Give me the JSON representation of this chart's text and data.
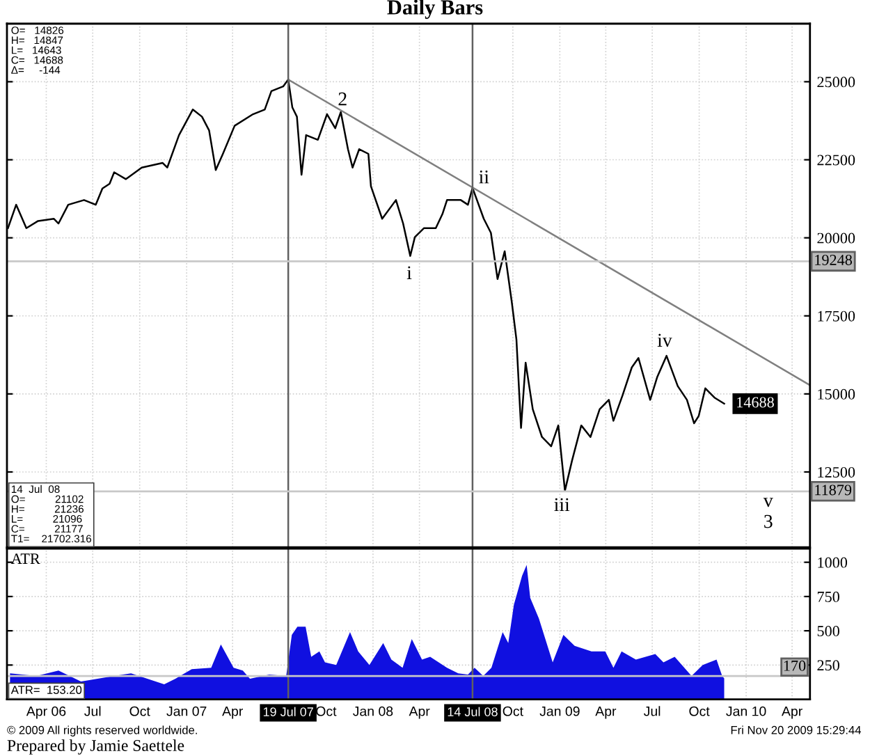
{
  "chart_data": [
    {
      "type": "line",
      "title": "Daily Bars",
      "x": [
        "2006-01-16",
        "2006-02-01",
        "2006-02-21",
        "2006-03-16",
        "2006-04-16",
        "2006-04-25",
        "2006-05-14",
        "2006-06-14",
        "2006-07-07",
        "2006-07-20",
        "2006-08-03",
        "2006-08-12",
        "2006-09-04",
        "2006-10-05",
        "2006-11-15",
        "2006-11-24",
        "2006-12-17",
        "2007-01-13",
        "2007-01-31",
        "2007-02-14",
        "2007-02-27",
        "2007-03-13",
        "2007-04-05",
        "2007-05-11",
        "2007-06-03",
        "2007-06-16",
        "2007-07-09",
        "2007-07-19",
        "2007-07-27",
        "2007-08-05",
        "2007-08-14",
        "2007-08-23",
        "2007-09-15",
        "2007-10-03",
        "2007-10-19",
        "2007-10-30",
        "2007-11-13",
        "2007-11-22",
        "2007-12-05",
        "2007-12-23",
        "2007-12-28",
        "2008-01-19",
        "2008-02-15",
        "2008-02-29",
        "2008-03-14",
        "2008-03-23",
        "2008-04-10",
        "2008-05-03",
        "2008-05-16",
        "2008-05-25",
        "2008-06-21",
        "2008-07-05",
        "2008-07-14",
        "2008-08-05",
        "2008-08-19",
        "2008-09-01",
        "2008-09-15",
        "2008-09-29",
        "2008-10-08",
        "2008-10-17",
        "2008-10-26",
        "2008-11-09",
        "2008-11-27",
        "2008-12-15",
        "2008-12-29",
        "2009-01-11",
        "2009-01-25",
        "2009-02-12",
        "2009-03-02",
        "2009-03-20",
        "2009-04-07",
        "2009-04-16",
        "2009-05-04",
        "2009-05-22",
        "2009-06-04",
        "2009-06-27",
        "2009-07-11",
        "2009-07-29",
        "2009-08-20",
        "2009-09-07",
        "2009-09-21",
        "2009-09-30",
        "2009-10-13",
        "2009-10-31",
        "2009-11-19"
      ],
      "series": [
        {
          "color": "#000000",
          "values": [
            20310,
            21060,
            20310,
            20540,
            20610,
            20460,
            21060,
            21210,
            21060,
            21580,
            21730,
            22100,
            21880,
            22250,
            22400,
            22250,
            23290,
            24110,
            23880,
            23440,
            22170,
            22690,
            23590,
            23960,
            24110,
            24700,
            24850,
            25070,
            24180,
            23880,
            22020,
            23290,
            23140,
            23960,
            23510,
            24030,
            22840,
            22250,
            22840,
            22690,
            21650,
            20610,
            21210,
            20460,
            19420,
            20020,
            20310,
            20310,
            20760,
            21210,
            21210,
            21060,
            21600,
            20610,
            20160,
            18680,
            19570,
            17930,
            16740,
            13910,
            16000,
            14510,
            13620,
            13320,
            13990,
            11900,
            12870,
            13990,
            13620,
            14510,
            14810,
            14140,
            14960,
            15850,
            16150,
            14810,
            15550,
            16220,
            15250,
            14810,
            14060,
            14290,
            15180,
            14880,
            14688
          ],
          "value_labels": [
            null,
            null,
            null,
            null,
            null,
            null,
            null,
            null,
            null,
            null,
            null,
            null,
            null,
            null,
            null,
            null,
            null,
            null,
            null,
            null,
            null,
            null,
            null,
            null,
            null,
            null,
            null,
            null,
            null,
            null,
            null,
            null,
            null,
            null,
            null,
            null,
            null,
            null,
            null,
            null,
            null,
            null,
            null,
            null,
            null,
            null,
            null,
            null,
            null,
            null,
            null,
            null,
            null,
            null,
            null,
            null,
            null,
            null,
            null,
            null,
            null,
            null,
            null,
            null,
            null,
            null,
            null,
            null,
            null,
            null,
            null,
            null,
            null,
            null,
            null,
            null,
            null,
            null,
            null,
            null,
            null,
            null,
            null,
            null,
            "14688"
          ]
        },
        {
          "type": "line",
          "color": "#808080",
          "x": [
            "2007-07-19",
            "2010-05-06"
          ],
          "values": [
            25070,
            15280
          ]
        }
      ],
      "xlim": [
        "2006-01-14",
        "2010-05-06"
      ],
      "ylim": [
        10090,
        26860
      ],
      "yticks": [
        12500,
        15000,
        17500,
        20000,
        22500,
        25000
      ],
      "tick_labels": "y",
      "grid": true,
      "ref_lines": [
        {
          "axis": "x",
          "value": "2007-07-19",
          "color": "#606060"
        },
        {
          "axis": "x",
          "value": "2008-07-14",
          "color": "#606060"
        },
        {
          "axis": "y",
          "value": 19248,
          "label": "19248",
          "color": "#c8c8c8"
        },
        {
          "axis": "y",
          "value": 11879,
          "label": "11879",
          "color": "#c8c8c8"
        }
      ],
      "annotations": [
        "O=   14826\nH=   14847\nL=   14643\nC=   14688\nΔ=     -144",
        "14  Jul  08\nO=          21102\nH=          21236\nL=          21096\nC=          21177\nT1=    21702.316",
        "2",
        "i",
        "ii",
        "iii",
        "iv",
        "v",
        "3"
      ]
    },
    {
      "type": "area",
      "title": "ATR",
      "x": [
        "2006-01-20",
        "2006-03-13",
        "2006-04-25",
        "2006-06-08",
        "2006-08-12",
        "2006-09-14",
        "2006-11-18",
        "2006-12-10",
        "2007-01-11",
        "2007-02-18",
        "2007-03-09",
        "2007-04-03",
        "2007-04-21",
        "2007-05-05",
        "2007-06-12",
        "2007-07-15",
        "2007-07-26",
        "2007-08-06",
        "2007-08-22",
        "2007-09-02",
        "2007-09-18",
        "2007-09-29",
        "2007-10-21",
        "2007-11-17",
        "2007-12-03",
        "2007-12-25",
        "2008-01-21",
        "2008-02-06",
        "2008-02-28",
        "2008-03-17",
        "2008-04-06",
        "2008-04-22",
        "2008-05-25",
        "2008-06-16",
        "2008-07-05",
        "2008-07-18",
        "2008-08-04",
        "2008-08-20",
        "2008-09-11",
        "2008-09-22",
        "2008-10-03",
        "2008-10-19",
        "2008-10-28",
        "2008-11-04",
        "2008-11-21",
        "2008-12-18",
        "2009-01-08",
        "2009-01-30",
        "2009-03-04",
        "2009-03-31",
        "2009-04-16",
        "2009-05-02",
        "2009-05-30",
        "2009-07-07",
        "2009-07-23",
        "2009-08-14",
        "2009-09-16",
        "2009-10-08",
        "2009-11-04",
        "2009-11-15",
        "2009-11-19"
      ],
      "series": [
        {
          "color": "#1010e0",
          "values": [
            190,
            170,
            210,
            130,
            170,
            190,
            110,
            150,
            220,
            230,
            400,
            230,
            210,
            150,
            180,
            170,
            470,
            530,
            530,
            310,
            350,
            270,
            250,
            490,
            350,
            250,
            410,
            290,
            230,
            440,
            290,
            310,
            230,
            190,
            180,
            230,
            170,
            230,
            490,
            410,
            690,
            900,
            980,
            740,
            590,
            270,
            470,
            390,
            350,
            350,
            230,
            350,
            290,
            330,
            270,
            310,
            170,
            250,
            290,
            170,
            153
          ]
        }
      ],
      "xlim": [
        "2006-01-14",
        "2010-05-06"
      ],
      "ylim": [
        0,
        1100
      ],
      "xticks": [
        {
          "value": "2006-04-01",
          "label": "Apr 06"
        },
        {
          "value": "2006-07-01",
          "label": "Jul"
        },
        {
          "value": "2006-10-01",
          "label": "Oct"
        },
        {
          "value": "2007-01-01",
          "label": "Jan 07"
        },
        {
          "value": "2007-04-01",
          "label": "Apr"
        },
        {
          "value": "2007-10-01",
          "label": "Oct"
        },
        {
          "value": "2008-01-01",
          "label": "Jan 08"
        },
        {
          "value": "2008-04-01",
          "label": "Apr"
        },
        {
          "value": "2008-10-01",
          "label": "Oct"
        },
        {
          "value": "2009-01-01",
          "label": "Jan 09"
        },
        {
          "value": "2009-04-01",
          "label": "Apr"
        },
        {
          "value": "2009-07-01",
          "label": "Jul"
        },
        {
          "value": "2009-10-01",
          "label": "Oct"
        },
        {
          "value": "2010-01-01",
          "label": "Jan 10"
        },
        {
          "value": "2010-04-01",
          "label": "Apr"
        }
      ],
      "yticks": [
        250,
        500,
        750,
        1000
      ],
      "grid": true,
      "ref_lines": [
        {
          "axis": "x",
          "value": "2007-07-19",
          "label": "19 Jul 07",
          "color": "#606060"
        },
        {
          "axis": "x",
          "value": "2008-07-14",
          "label": "14 Jul 08",
          "color": "#606060"
        },
        {
          "axis": "y",
          "value": 170,
          "label": "170",
          "color": "#c8c8c8"
        }
      ],
      "annotations": [
        "ATR=  153.20",
        "© 2009 All rights reserved worldwide.",
        "Fri Nov 20 2009 15:29:44",
        "Prepared by Jamie Saettele"
      ]
    }
  ]
}
